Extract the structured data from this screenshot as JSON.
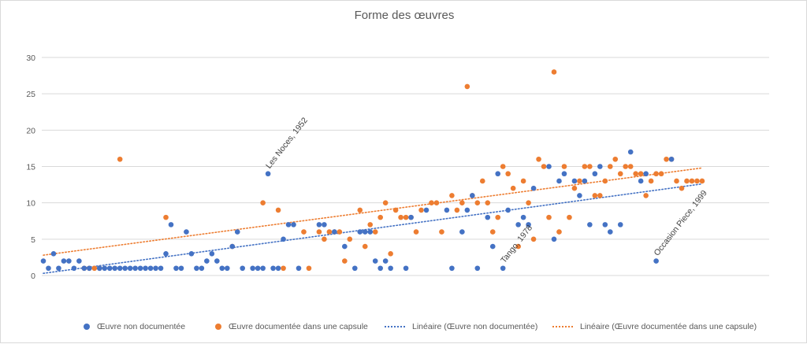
{
  "chart_data": {
    "type": "scatter",
    "title": "Forme des œuvres",
    "ylim": [
      0,
      30
    ],
    "yticks": [
      "0",
      "5",
      "10",
      "15",
      "20",
      "25",
      "30"
    ],
    "grid": true,
    "legend_position": "bottom",
    "colors": {
      "blue": "#4472c4",
      "orange": "#ed7d31",
      "grid": "#d9d9d9"
    },
    "series": [
      {
        "name": "Œuvre non documentée",
        "color": "#4472c4",
        "points": [
          [
            1,
            2
          ],
          [
            2,
            1
          ],
          [
            3,
            3
          ],
          [
            4,
            1
          ],
          [
            5,
            2
          ],
          [
            6,
            2
          ],
          [
            7,
            1
          ],
          [
            8,
            2
          ],
          [
            9,
            1
          ],
          [
            10,
            1
          ],
          [
            12,
            1
          ],
          [
            13,
            1
          ],
          [
            14,
            1
          ],
          [
            15,
            1
          ],
          [
            16,
            1
          ],
          [
            17,
            1
          ],
          [
            18,
            1
          ],
          [
            19,
            1
          ],
          [
            20,
            1
          ],
          [
            21,
            1
          ],
          [
            22,
            1
          ],
          [
            23,
            1
          ],
          [
            24,
            1
          ],
          [
            25,
            3
          ],
          [
            26,
            7
          ],
          [
            27,
            1
          ],
          [
            28,
            1
          ],
          [
            29,
            6
          ],
          [
            30,
            3
          ],
          [
            31,
            1
          ],
          [
            32,
            1
          ],
          [
            33,
            2
          ],
          [
            34,
            3
          ],
          [
            35,
            2
          ],
          [
            36,
            1
          ],
          [
            37,
            1
          ],
          [
            38,
            4
          ],
          [
            39,
            6
          ],
          [
            40,
            1
          ],
          [
            42,
            1
          ],
          [
            43,
            1
          ],
          [
            44,
            1
          ],
          [
            45,
            14
          ],
          [
            46,
            1
          ],
          [
            47,
            1
          ],
          [
            48,
            5
          ],
          [
            49,
            7
          ],
          [
            50,
            7
          ],
          [
            51,
            1
          ],
          [
            55,
            7
          ],
          [
            56,
            7
          ],
          [
            58,
            6
          ],
          [
            60,
            4
          ],
          [
            62,
            1
          ],
          [
            63,
            6
          ],
          [
            64,
            6
          ],
          [
            65,
            6
          ],
          [
            66,
            2
          ],
          [
            67,
            1
          ],
          [
            68,
            2
          ],
          [
            69,
            1
          ],
          [
            72,
            1
          ],
          [
            73,
            8
          ],
          [
            76,
            9
          ],
          [
            80,
            9
          ],
          [
            81,
            1
          ],
          [
            83,
            6
          ],
          [
            84,
            9
          ],
          [
            85,
            11
          ],
          [
            86,
            1
          ],
          [
            88,
            8
          ],
          [
            89,
            4
          ],
          [
            90,
            14
          ],
          [
            91,
            1
          ],
          [
            92,
            9
          ],
          [
            94,
            7
          ],
          [
            95,
            8
          ],
          [
            96,
            7
          ],
          [
            97,
            12
          ],
          [
            100,
            15
          ],
          [
            101,
            5
          ],
          [
            102,
            13
          ],
          [
            103,
            14
          ],
          [
            105,
            13
          ],
          [
            106,
            11
          ],
          [
            107,
            13
          ],
          [
            108,
            7
          ],
          [
            109,
            14
          ],
          [
            110,
            15
          ],
          [
            111,
            7
          ],
          [
            112,
            6
          ],
          [
            114,
            7
          ],
          [
            116,
            17
          ],
          [
            118,
            13
          ],
          [
            119,
            14
          ],
          [
            121,
            2
          ],
          [
            124,
            16
          ]
        ]
      },
      {
        "name": "Œuvre documentée dans une capsule",
        "color": "#ed7d31",
        "points": [
          [
            9,
            1
          ],
          [
            10,
            1
          ],
          [
            11,
            1
          ],
          [
            12,
            1
          ],
          [
            16,
            16
          ],
          [
            25,
            8
          ],
          [
            38,
            4
          ],
          [
            44,
            10
          ],
          [
            47,
            9
          ],
          [
            48,
            1
          ],
          [
            52,
            6
          ],
          [
            53,
            1
          ],
          [
            55,
            6
          ],
          [
            56,
            5
          ],
          [
            57,
            6
          ],
          [
            58,
            6
          ],
          [
            59,
            6
          ],
          [
            60,
            2
          ],
          [
            61,
            5
          ],
          [
            63,
            9
          ],
          [
            64,
            4
          ],
          [
            65,
            7
          ],
          [
            66,
            6
          ],
          [
            67,
            8
          ],
          [
            68,
            10
          ],
          [
            69,
            3
          ],
          [
            70,
            9
          ],
          [
            71,
            8
          ],
          [
            72,
            8
          ],
          [
            73,
            8
          ],
          [
            74,
            6
          ],
          [
            75,
            9
          ],
          [
            77,
            10
          ],
          [
            78,
            10
          ],
          [
            79,
            6
          ],
          [
            81,
            11
          ],
          [
            82,
            9
          ],
          [
            83,
            10
          ],
          [
            84,
            26
          ],
          [
            85,
            11
          ],
          [
            86,
            10
          ],
          [
            87,
            13
          ],
          [
            88,
            10
          ],
          [
            89,
            6
          ],
          [
            90,
            8
          ],
          [
            91,
            15
          ],
          [
            92,
            14
          ],
          [
            93,
            12
          ],
          [
            94,
            4
          ],
          [
            95,
            13
          ],
          [
            96,
            10
          ],
          [
            97,
            5
          ],
          [
            98,
            16
          ],
          [
            99,
            15
          ],
          [
            100,
            8
          ],
          [
            101,
            28
          ],
          [
            102,
            6
          ],
          [
            103,
            15
          ],
          [
            104,
            8
          ],
          [
            105,
            12
          ],
          [
            106,
            13
          ],
          [
            107,
            15
          ],
          [
            108,
            15
          ],
          [
            109,
            11
          ],
          [
            110,
            11
          ],
          [
            111,
            13
          ],
          [
            112,
            15
          ],
          [
            113,
            16
          ],
          [
            114,
            14
          ],
          [
            115,
            15
          ],
          [
            116,
            15
          ],
          [
            117,
            14
          ],
          [
            118,
            14
          ],
          [
            119,
            11
          ],
          [
            120,
            13
          ],
          [
            121,
            14
          ],
          [
            122,
            14
          ],
          [
            123,
            16
          ],
          [
            124,
            16
          ],
          [
            125,
            13
          ],
          [
            126,
            12
          ],
          [
            127,
            13
          ],
          [
            128,
            13
          ],
          [
            129,
            13
          ],
          [
            130,
            13
          ]
        ]
      },
      {
        "name": "Linéaire  (Œuvre non documentée)",
        "type": "trendline",
        "style": "dotted",
        "color": "#4472c4",
        "points": [
          [
            1,
            0.3
          ],
          [
            130,
            12.6
          ]
        ]
      },
      {
        "name": "Linéaire  (Œuvre documentée dans une capsule)",
        "type": "trendline",
        "style": "dotted",
        "color": "#ed7d31",
        "points": [
          [
            1,
            2.8
          ],
          [
            130,
            14.8
          ]
        ]
      }
    ],
    "annotations": [
      {
        "text": "Les Noces, 1952",
        "x": 45,
        "y": 14
      },
      {
        "text": "Tango, 1978",
        "x": 91,
        "y": 1
      },
      {
        "text": "Occasion Piece, 1999",
        "x": 121,
        "y": 2
      }
    ],
    "legend": [
      "Œuvre non documentée",
      "Œuvre documentée dans une capsule",
      "Linéaire  (Œuvre non documentée)",
      "Linéaire  (Œuvre documentée dans une capsule)"
    ]
  }
}
